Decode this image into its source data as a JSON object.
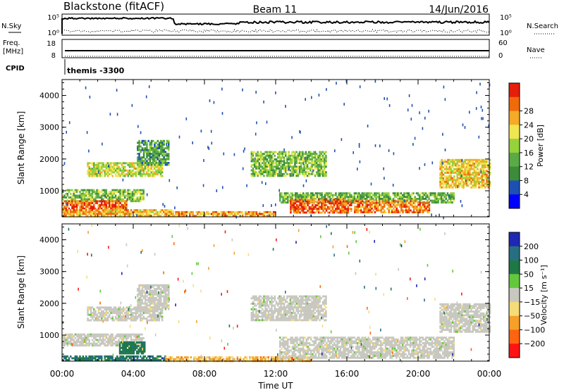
{
  "header": {
    "station": "Blackstone (fitACF)",
    "beam": "Beam 11",
    "date": "14/Jun/2016"
  },
  "params": {
    "nsky_label": "N.Sky",
    "nsearch_label": "N.Search",
    "freq_label": "Freq.",
    "freq_unit": "[MHz]",
    "nave_label": "Nave",
    "cpid_label": "CPID",
    "cpid_value": "themis -3300",
    "count_top": "10^5",
    "count_bottom": "10^0",
    "freq_ticks": [
      "18",
      "8"
    ],
    "nave_ticks": [
      "60",
      "0"
    ]
  },
  "chart_data": [
    {
      "type": "heatmap",
      "name": "power",
      "ylabel": "Slant Range [km]",
      "yticks": [
        1000,
        2000,
        3000,
        4000
      ],
      "ylim": [
        180,
        4500
      ],
      "xlim": [
        0,
        24
      ],
      "colorbar_label": "Power [dB]",
      "colorbar_ticks": [
        4,
        8,
        12,
        16,
        20,
        24,
        28
      ],
      "colorbar_levels": [
        "#0000ff",
        "#1e50b4",
        "#3c8c3c",
        "#5aaa46",
        "#96d23c",
        "#f0e650",
        "#f5aa28",
        "#f06a0a",
        "#e61e0a"
      ],
      "regions": [
        {
          "t": [
            1.4,
            5.6
          ],
          "r": [
            1480,
            1900
          ],
          "level": 0.55
        },
        {
          "t": [
            4.2,
            6.0
          ],
          "r": [
            1800,
            2600
          ],
          "level": 0.35
        },
        {
          "t": [
            0.0,
            4.6
          ],
          "r": [
            700,
            1050
          ],
          "level": 0.45
        },
        {
          "t": [
            0.0,
            3.6
          ],
          "r": [
            300,
            700
          ],
          "level": 0.85
        },
        {
          "t": [
            0.0,
            6.2
          ],
          "r": [
            200,
            420
          ],
          "level": 0.7
        },
        {
          "t": [
            6.0,
            12.0
          ],
          "r": [
            190,
            360
          ],
          "level": 0.75
        },
        {
          "t": [
            10.6,
            14.8
          ],
          "r": [
            1450,
            2250
          ],
          "level": 0.45
        },
        {
          "t": [
            12.2,
            22.0
          ],
          "r": [
            650,
            950
          ],
          "level": 0.4
        },
        {
          "t": [
            12.8,
            16.2
          ],
          "r": [
            300,
            750
          ],
          "level": 0.85
        },
        {
          "t": [
            16.4,
            20.6
          ],
          "r": [
            300,
            700
          ],
          "level": 0.8
        },
        {
          "t": [
            21.2,
            24.0
          ],
          "r": [
            1100,
            2000
          ],
          "level": 0.65
        }
      ]
    },
    {
      "type": "heatmap",
      "name": "velocity",
      "ylabel": "Slant Range [km]",
      "yticks": [
        1000,
        2000,
        3000,
        4000
      ],
      "ylim": [
        180,
        4500
      ],
      "xlim": [
        0,
        24
      ],
      "colorbar_label": "Velocity [m s^-1]",
      "colorbar_ticks": [
        200,
        100,
        50,
        15,
        -15,
        -50,
        -100,
        -200
      ],
      "colorbar_levels": [
        "#1e28b4",
        "#286e82",
        "#1e7846",
        "#64c83c",
        "#c8c8c0",
        "#f5dc78",
        "#f5a028",
        "#ff6410",
        "#ff1414"
      ],
      "regions": [
        {
          "t": [
            1.4,
            5.6
          ],
          "r": [
            1480,
            1900
          ],
          "level": 0.5
        },
        {
          "t": [
            4.2,
            6.0
          ],
          "r": [
            1800,
            2600
          ],
          "level": 0.5
        },
        {
          "t": [
            0.0,
            4.6
          ],
          "r": [
            650,
            1050
          ],
          "level": 0.5
        },
        {
          "t": [
            3.2,
            4.6
          ],
          "r": [
            400,
            800
          ],
          "level": 0.78
        },
        {
          "t": [
            0.0,
            5.8
          ],
          "r": [
            200,
            360
          ],
          "level": 0.82
        },
        {
          "t": [
            5.8,
            14.0
          ],
          "r": [
            190,
            330
          ],
          "level": 0.3
        },
        {
          "t": [
            10.6,
            14.8
          ],
          "r": [
            1450,
            2250
          ],
          "level": 0.5
        },
        {
          "t": [
            12.2,
            22.0
          ],
          "r": [
            300,
            950
          ],
          "level": 0.5
        },
        {
          "t": [
            21.2,
            24.0
          ],
          "r": [
            1100,
            2000
          ],
          "level": 0.5
        }
      ]
    }
  ],
  "xaxis": {
    "ticks": [
      "00:00",
      "04:00",
      "08:00",
      "12:00",
      "16:00",
      "20:00",
      "00:00"
    ],
    "label": "Time UT"
  }
}
